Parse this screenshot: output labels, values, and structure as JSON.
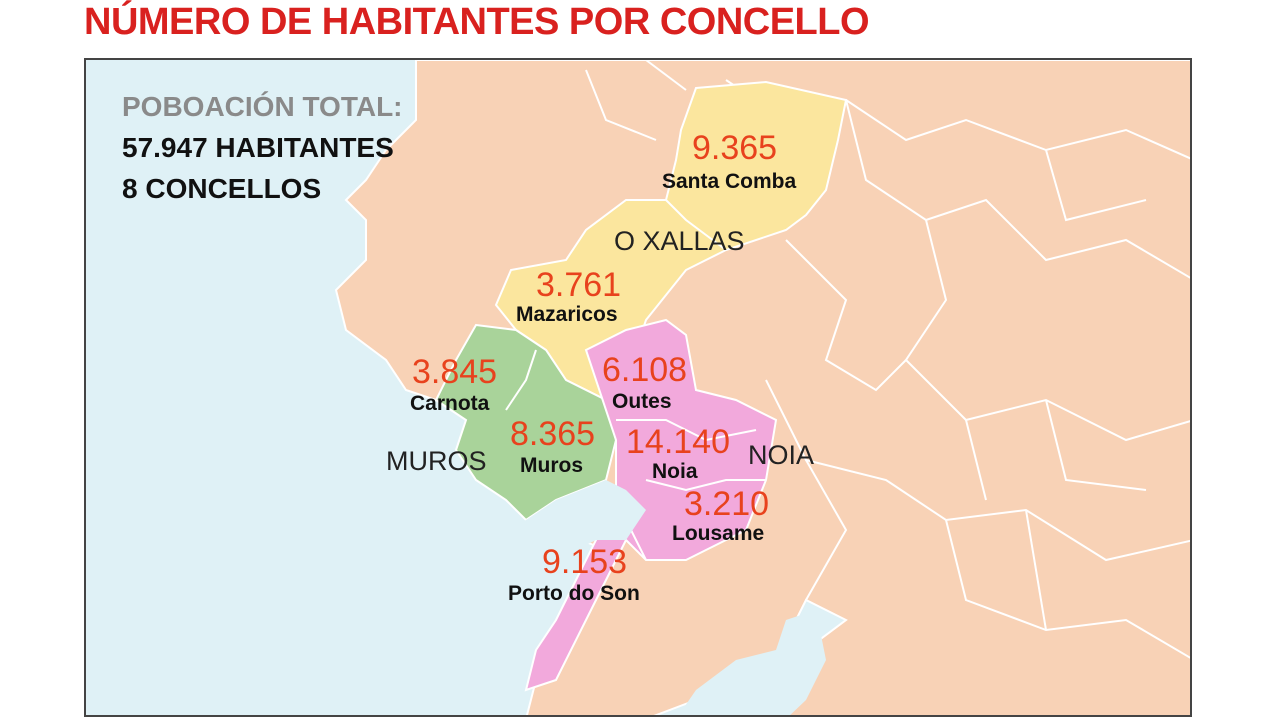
{
  "title": "NÚMERO DE HABITANTES POR CONCELLO",
  "summary": {
    "label": "POBOACIÓN TOTAL:",
    "population": "57.947 HABITANTES",
    "municipalities": "8 CONCELLOS"
  },
  "colors": {
    "title": "#d9211f",
    "sea": "#dff1f6",
    "land_other": "#f8d2b6",
    "xallas": "#fbe69e",
    "muros": "#a9d39a",
    "noia": "#f2a9dc",
    "population_number": "#e8421d"
  },
  "regions": [
    {
      "label": "O XALLAS",
      "color_key": "xallas"
    },
    {
      "label": "MUROS",
      "color_key": "muros"
    },
    {
      "label": "NOIA",
      "color_key": "noia"
    }
  ],
  "municipalities": [
    {
      "name": "Santa Comba",
      "population": "9.365",
      "region": "O XALLAS"
    },
    {
      "name": "Mazaricos",
      "population": "3.761",
      "region": "O XALLAS"
    },
    {
      "name": "Carnota",
      "population": "3.845",
      "region": "MUROS"
    },
    {
      "name": "Muros",
      "population": "8.365",
      "region": "MUROS"
    },
    {
      "name": "Outes",
      "population": "6.108",
      "region": "NOIA"
    },
    {
      "name": "Noia",
      "population": "14.140",
      "region": "NOIA"
    },
    {
      "name": "Lousame",
      "population": "3.210",
      "region": "NOIA"
    },
    {
      "name": "Porto do Son",
      "population": "9.153",
      "region": "NOIA"
    }
  ]
}
